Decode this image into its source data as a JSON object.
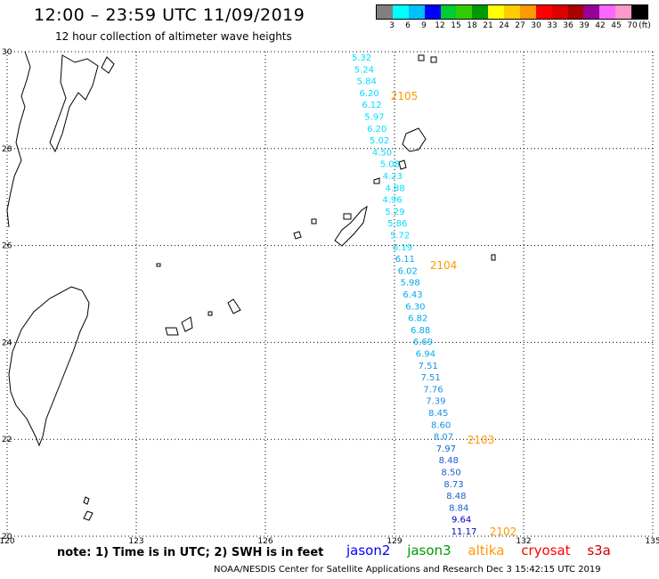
{
  "header": {
    "title": "12:00 – 23:59 UTC 11/09/2019",
    "subtitle": "12 hour collection of altimeter wave heights"
  },
  "scale": {
    "unit": "(ft)",
    "colors": [
      "#808080",
      "#00ffff",
      "#00bfff",
      "#0000ff",
      "#00cc33",
      "#33cc00",
      "#009900",
      "#ffff00",
      "#ffcc00",
      "#ff9900",
      "#ff0000",
      "#dd0000",
      "#aa0000",
      "#990099",
      "#ff66ff",
      "#ff99cc",
      "#000000"
    ],
    "labels": [
      "3",
      "6",
      "9",
      "12",
      "15",
      "18",
      "21",
      "24",
      "27",
      "30",
      "33",
      "36",
      "39",
      "42",
      "45",
      "70"
    ]
  },
  "map": {
    "lon_labels": [
      "120",
      "123",
      "126",
      "129",
      "132",
      "135"
    ],
    "lat_labels": [
      "30",
      "28",
      "26",
      "24",
      "22",
      "20"
    ],
    "grid": true
  },
  "swh_values": [
    "5.32",
    "5.24",
    "5.84",
    "6.20",
    "6.12",
    "5.97",
    "6.20",
    "5.02",
    "4.50",
    "5.08",
    "4.23",
    "4.88",
    "4.96",
    "5.29",
    "5.86",
    "5.72",
    "6.19",
    "6.11",
    "6.02",
    "5.98",
    "6.43",
    "6.30",
    "6.82",
    "6.88",
    "6.69",
    "6.94",
    "7.51",
    "7.51",
    "7.76",
    "7.39",
    "8.45",
    "8.60",
    "8.07",
    "7.97",
    "8.48",
    "8.50",
    "8.73",
    "8.48",
    "8.84",
    "9.64",
    "11.17"
  ],
  "swh_colors": {
    "upper": "#00ddff",
    "middle": "#00aaee",
    "lower": "#1a8fe0",
    "deep": "#1560d0",
    "max_dark": "#0000bb"
  },
  "time_labels": [
    "2105",
    "2104",
    "2103",
    "2102"
  ],
  "time_label_color": "#ff9900",
  "missions": {
    "jason2": {
      "label": "jason2",
      "color": "#0000ff"
    },
    "jason3": {
      "label": "jason3",
      "color": "#009900"
    },
    "altika": {
      "label": "altika",
      "color": "#ff9900"
    },
    "cryosat": {
      "label": "cryosat",
      "color": "#ff0000"
    },
    "s3a": {
      "label": "s3a",
      "color": "#cc0000"
    }
  },
  "footer": {
    "note": "note: 1) Time is in UTC; 2) SWH is in feet",
    "credit": "NOAA/NESDIS Center for Satellite Applications and Research    Dec  3 15:42:15 UTC 2019"
  }
}
